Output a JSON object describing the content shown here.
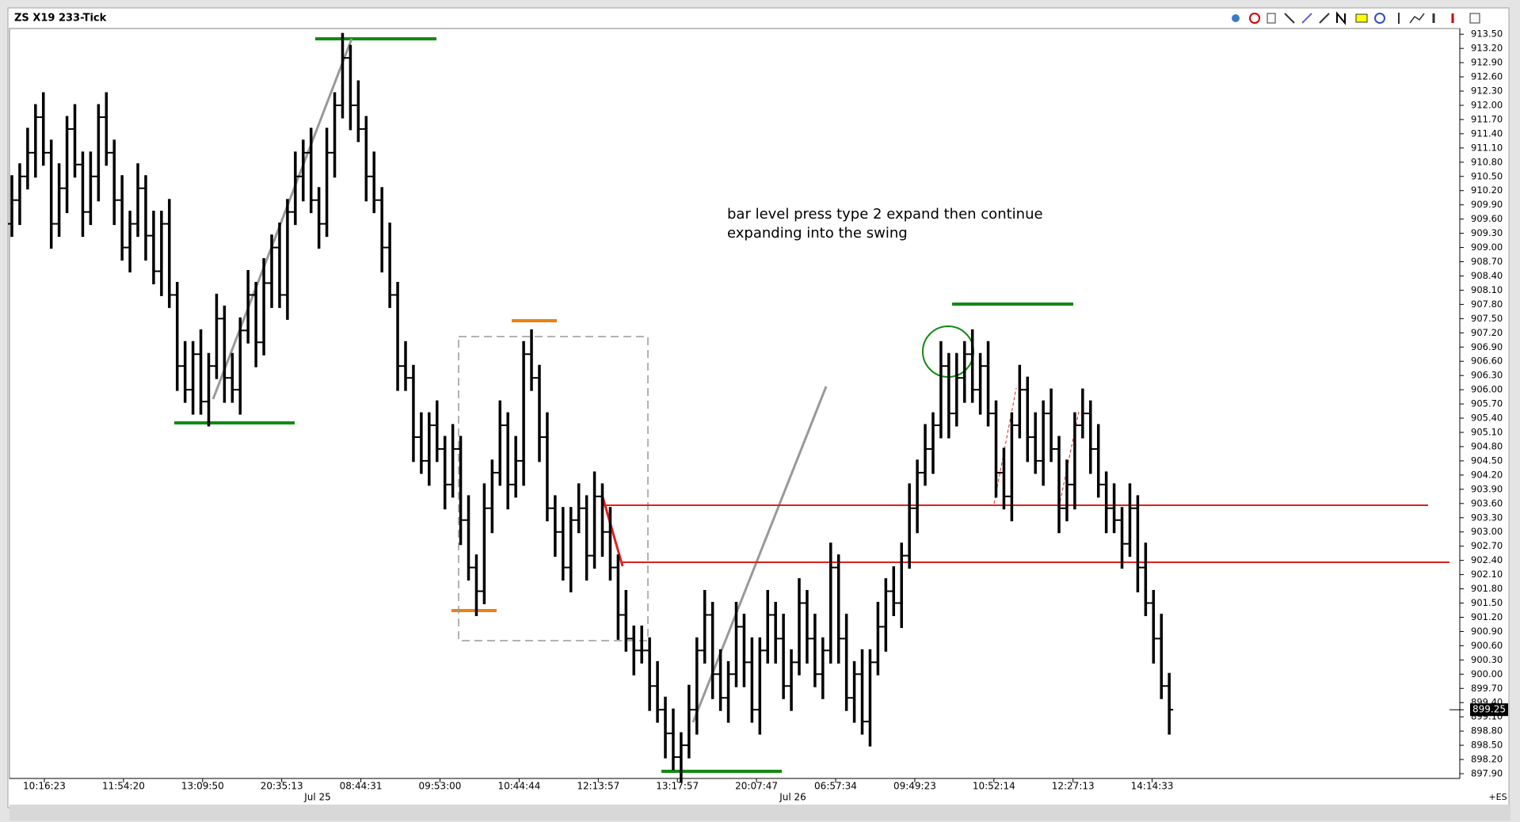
{
  "chart_data": {
    "type": "ohlc",
    "title": "ZS X19 233-Tick",
    "annotation": [
      "bar level press type 2 expand then continue",
      "expanding into the swing"
    ],
    "ohlc": [
      [
        909.5,
        910.5,
        909.25,
        910.0
      ],
      [
        910.0,
        910.75,
        909.5,
        910.5
      ],
      [
        910.5,
        911.5,
        910.25,
        911.0
      ],
      [
        911.0,
        912.0,
        910.5,
        911.75
      ],
      [
        911.75,
        912.25,
        910.75,
        911.0
      ],
      [
        911.0,
        911.25,
        909.0,
        909.5
      ],
      [
        909.5,
        910.75,
        909.25,
        910.25
      ],
      [
        910.25,
        911.75,
        909.75,
        911.5
      ],
      [
        911.5,
        912.0,
        910.5,
        910.75
      ],
      [
        910.75,
        911.0,
        909.25,
        909.75
      ],
      [
        909.75,
        911.0,
        909.5,
        910.5
      ],
      [
        910.5,
        912.0,
        910.0,
        911.75
      ],
      [
        911.75,
        912.25,
        910.75,
        911.0
      ],
      [
        911.0,
        911.25,
        909.5,
        910.0
      ],
      [
        910.0,
        910.5,
        908.75,
        909.0
      ],
      [
        909.0,
        909.75,
        908.5,
        909.5
      ],
      [
        909.5,
        910.75,
        909.25,
        910.25
      ],
      [
        910.25,
        910.5,
        908.75,
        909.25
      ],
      [
        909.25,
        909.75,
        908.25,
        908.5
      ],
      [
        908.5,
        909.75,
        908.0,
        909.5
      ],
      [
        909.5,
        910.0,
        907.75,
        908.0
      ],
      [
        908.0,
        908.25,
        906.0,
        906.5
      ],
      [
        906.5,
        907.0,
        905.75,
        906.0
      ],
      [
        906.0,
        907.0,
        905.5,
        906.75
      ],
      [
        906.75,
        907.25,
        905.5,
        905.75
      ],
      [
        905.75,
        906.75,
        905.25,
        906.5
      ],
      [
        906.5,
        908.0,
        906.25,
        907.5
      ],
      [
        907.5,
        907.75,
        905.75,
        906.25
      ],
      [
        906.25,
        906.75,
        905.75,
        906.0
      ],
      [
        906.0,
        907.5,
        905.5,
        907.25
      ],
      [
        907.25,
        908.5,
        907.0,
        908.0
      ],
      [
        908.0,
        908.25,
        906.5,
        907.0
      ],
      [
        907.0,
        908.75,
        906.75,
        908.25
      ],
      [
        908.25,
        909.25,
        907.75,
        909.0
      ],
      [
        909.0,
        909.5,
        907.75,
        908.0
      ],
      [
        908.0,
        910.0,
        907.5,
        909.75
      ],
      [
        909.75,
        911.0,
        909.5,
        910.5
      ],
      [
        910.5,
        911.25,
        910.0,
        911.0
      ],
      [
        911.0,
        911.5,
        909.75,
        910.0
      ],
      [
        910.0,
        910.25,
        909.0,
        909.5
      ],
      [
        909.5,
        911.5,
        909.25,
        911.0
      ],
      [
        911.0,
        912.25,
        910.5,
        912.0
      ],
      [
        912.0,
        913.5,
        911.75,
        913.0
      ],
      [
        913.0,
        913.25,
        911.5,
        912.0
      ],
      [
        912.0,
        912.5,
        911.25,
        911.5
      ],
      [
        911.5,
        911.75,
        910.0,
        910.5
      ],
      [
        910.5,
        911.0,
        909.75,
        910.0
      ],
      [
        910.0,
        910.25,
        908.5,
        909.0
      ],
      [
        909.0,
        909.5,
        907.75,
        908.0
      ],
      [
        908.0,
        908.25,
        906.0,
        906.5
      ],
      [
        906.5,
        907.0,
        906.0,
        906.25
      ],
      [
        906.25,
        906.5,
        904.5,
        905.0
      ],
      [
        905.0,
        905.5,
        904.25,
        904.5
      ],
      [
        904.5,
        905.5,
        904.0,
        905.25
      ],
      [
        905.25,
        905.75,
        904.5,
        904.75
      ],
      [
        904.75,
        905.0,
        903.5,
        904.0
      ],
      [
        904.0,
        905.25,
        903.75,
        904.75
      ],
      [
        904.75,
        905.0,
        902.75,
        903.25
      ],
      [
        903.25,
        903.75,
        902.0,
        902.25
      ],
      [
        902.25,
        902.5,
        901.25,
        901.75
      ],
      [
        901.75,
        904.0,
        901.5,
        903.5
      ],
      [
        903.5,
        904.5,
        903.0,
        904.25
      ],
      [
        904.25,
        905.75,
        904.0,
        905.25
      ],
      [
        905.25,
        905.5,
        903.5,
        904.0
      ],
      [
        904.0,
        905.0,
        903.75,
        904.5
      ],
      [
        904.5,
        907.0,
        904.0,
        906.75
      ],
      [
        906.75,
        907.25,
        906.0,
        906.25
      ],
      [
        906.25,
        906.5,
        904.5,
        905.0
      ],
      [
        905.0,
        905.5,
        903.25,
        903.5
      ],
      [
        903.5,
        903.75,
        902.5,
        903.0
      ],
      [
        903.0,
        903.5,
        902.0,
        902.25
      ],
      [
        902.25,
        903.5,
        901.75,
        903.25
      ],
      [
        903.25,
        904.0,
        903.0,
        903.5
      ],
      [
        903.5,
        903.75,
        902.0,
        902.5
      ],
      [
        902.5,
        904.25,
        902.25,
        903.75
      ],
      [
        903.75,
        904.0,
        902.5,
        903.0
      ],
      [
        903.0,
        903.5,
        902.0,
        902.25
      ],
      [
        902.25,
        902.5,
        900.75,
        901.25
      ],
      [
        901.25,
        901.75,
        900.5,
        900.75
      ],
      [
        900.75,
        901.0,
        900.0,
        900.5
      ],
      [
        900.5,
        901.0,
        900.25,
        900.5
      ],
      [
        900.5,
        900.75,
        899.25,
        899.75
      ],
      [
        899.75,
        900.25,
        899.0,
        899.25
      ],
      [
        899.25,
        899.5,
        898.25,
        898.75
      ],
      [
        898.75,
        899.25,
        898.0,
        898.25
      ],
      [
        898.25,
        898.75,
        897.75,
        898.5
      ],
      [
        898.5,
        899.75,
        898.25,
        899.25
      ],
      [
        899.25,
        900.75,
        898.75,
        900.5
      ],
      [
        900.5,
        901.75,
        900.25,
        901.25
      ],
      [
        901.25,
        901.5,
        899.5,
        900.0
      ],
      [
        900.0,
        900.5,
        899.25,
        899.5
      ],
      [
        899.5,
        900.25,
        899.0,
        900.0
      ],
      [
        900.0,
        901.5,
        899.75,
        901.0
      ],
      [
        901.0,
        901.25,
        899.75,
        900.25
      ],
      [
        900.25,
        900.75,
        899.0,
        899.25
      ],
      [
        899.25,
        900.75,
        898.75,
        900.5
      ],
      [
        900.5,
        901.75,
        900.25,
        901.25
      ],
      [
        901.25,
        901.5,
        900.25,
        900.75
      ],
      [
        900.75,
        901.25,
        899.5,
        899.75
      ],
      [
        899.75,
        900.5,
        899.25,
        900.25
      ],
      [
        900.25,
        902.0,
        900.0,
        901.5
      ],
      [
        901.5,
        901.75,
        900.25,
        900.75
      ],
      [
        900.75,
        901.25,
        899.75,
        900.0
      ],
      [
        900.0,
        900.75,
        899.5,
        900.5
      ],
      [
        900.5,
        902.75,
        900.25,
        902.25
      ],
      [
        902.25,
        902.5,
        900.25,
        900.75
      ],
      [
        900.75,
        901.25,
        899.25,
        899.5
      ],
      [
        899.5,
        900.25,
        899.0,
        900.0
      ],
      [
        900.0,
        900.5,
        898.75,
        899.0
      ],
      [
        899.0,
        900.5,
        898.5,
        900.25
      ],
      [
        900.25,
        901.5,
        900.0,
        901.0
      ],
      [
        901.0,
        902.0,
        900.5,
        901.75
      ],
      [
        901.75,
        902.25,
        901.25,
        901.5
      ],
      [
        901.5,
        902.75,
        901.0,
        902.5
      ],
      [
        902.5,
        904.0,
        902.25,
        903.5
      ],
      [
        903.5,
        904.5,
        903.0,
        904.25
      ],
      [
        904.25,
        905.25,
        904.0,
        904.75
      ],
      [
        904.75,
        905.5,
        904.25,
        905.25
      ],
      [
        905.25,
        907.0,
        905.0,
        906.5
      ],
      [
        906.5,
        906.75,
        905.0,
        905.5
      ],
      [
        905.5,
        906.75,
        905.25,
        906.25
      ],
      [
        906.25,
        907.0,
        905.75,
        906.75
      ],
      [
        906.75,
        907.25,
        905.75,
        906.0
      ],
      [
        906.0,
        906.75,
        905.5,
        906.5
      ],
      [
        906.5,
        907.0,
        905.25,
        905.5
      ],
      [
        905.5,
        905.75,
        903.75,
        904.25
      ],
      [
        904.25,
        904.75,
        903.5,
        903.75
      ],
      [
        903.75,
        905.5,
        903.25,
        905.25
      ],
      [
        905.25,
        906.5,
        905.0,
        906.0
      ],
      [
        906.0,
        906.25,
        904.5,
        905.0
      ],
      [
        905.0,
        905.5,
        904.25,
        904.5
      ],
      [
        904.5,
        905.75,
        904.0,
        905.5
      ],
      [
        905.5,
        906.0,
        904.5,
        904.75
      ],
      [
        904.75,
        905.0,
        903.0,
        903.5
      ],
      [
        903.5,
        904.5,
        903.25,
        904.0
      ],
      [
        904.0,
        905.5,
        903.5,
        905.25
      ],
      [
        905.25,
        906.0,
        905.0,
        905.5
      ],
      [
        905.5,
        905.75,
        904.25,
        904.75
      ],
      [
        904.75,
        905.25,
        903.75,
        904.0
      ],
      [
        904.0,
        904.25,
        903.0,
        903.5
      ],
      [
        903.5,
        904.0,
        903.0,
        903.25
      ],
      [
        903.25,
        903.5,
        902.25,
        902.75
      ],
      [
        902.75,
        904.0,
        902.5,
        903.5
      ],
      [
        903.5,
        903.75,
        901.75,
        902.25
      ],
      [
        902.25,
        902.75,
        901.25,
        901.5
      ],
      [
        901.5,
        901.75,
        900.25,
        900.75
      ],
      [
        900.75,
        901.25,
        899.5,
        899.75
      ],
      [
        899.75,
        900.0,
        898.75,
        899.25
      ]
    ],
    "x_labels": [
      "10:16:23",
      "11:54:20",
      "13:09:50",
      "20:35:13",
      "08:44:31",
      "09:53:00",
      "10:44:44",
      "12:13:57",
      "13:17:57",
      "20:07:47",
      "06:57:34",
      "09:49:23",
      "10:52:14",
      "12:27:13",
      "14:14:33"
    ],
    "date_labels": [
      "Jul 25",
      "Jul 26"
    ],
    "last_price": 899.25,
    "instrument_tag": "+ES",
    "color": "#000000",
    "ylim": [
      897.8,
      913.62
    ],
    "yticks": [
      {
        "value": 913.5,
        "label": "913.50"
      },
      {
        "value": 913.2,
        "label": "913.20"
      },
      {
        "value": 912.9,
        "label": "912.90"
      },
      {
        "value": 912.6,
        "label": "912.60"
      },
      {
        "value": 912.3,
        "label": "912.30"
      },
      {
        "value": 912,
        "label": "912.00"
      },
      {
        "value": 911.7,
        "label": "911.70"
      },
      {
        "value": 911.4,
        "label": "911.40"
      },
      {
        "value": 911.1,
        "label": "911.10"
      },
      {
        "value": 910.8,
        "label": "910.80"
      },
      {
        "value": 910.5,
        "label": "910.50"
      },
      {
        "value": 910.2,
        "label": "910.20"
      },
      {
        "value": 909.9,
        "label": "909.90"
      },
      {
        "value": 909.6,
        "label": "909.60"
      },
      {
        "value": 909.3,
        "label": "909.30"
      },
      {
        "value": 909,
        "label": "909.00"
      },
      {
        "value": 908.7,
        "label": "908.70"
      },
      {
        "value": 908.4,
        "label": "908.40"
      },
      {
        "value": 908.1,
        "label": "908.10"
      },
      {
        "value": 907.8,
        "label": "907.80"
      },
      {
        "value": 907.5,
        "label": "907.50"
      },
      {
        "value": 907.2,
        "label": "907.20"
      },
      {
        "value": 906.9,
        "label": "906.90"
      },
      {
        "value": 906.6,
        "label": "906.60"
      },
      {
        "value": 906.3,
        "label": "906.30"
      },
      {
        "value": 906,
        "label": "906.00"
      },
      {
        "value": 905.7,
        "label": "905.70"
      },
      {
        "value": 905.4,
        "label": "905.40"
      },
      {
        "value": 905.1,
        "label": "905.10"
      },
      {
        "value": 904.8,
        "label": "904.80"
      },
      {
        "value": 904.5,
        "label": "904.50"
      },
      {
        "value": 904.2,
        "label": "904.20"
      },
      {
        "value": 903.9,
        "label": "903.90"
      },
      {
        "value": 903.6,
        "label": "903.60"
      },
      {
        "value": 903.3,
        "label": "903.30"
      },
      {
        "value": 903,
        "label": "903.00"
      },
      {
        "value": 902.7,
        "label": "902.70"
      },
      {
        "value": 902.4,
        "label": "902.40"
      },
      {
        "value": 902.1,
        "label": "902.10"
      },
      {
        "value": 901.8,
        "label": "901.80"
      },
      {
        "value": 901.5,
        "label": "901.50"
      },
      {
        "value": 901.2,
        "label": "901.20"
      },
      {
        "value": 900.9,
        "label": "900.90"
      },
      {
        "value": 900.6,
        "label": "900.60"
      },
      {
        "value": 900.3,
        "label": "900.30"
      },
      {
        "value": 900,
        "label": "900.00"
      },
      {
        "value": 899.7,
        "label": "899.70"
      },
      {
        "value": 899.4,
        "label": "899.40"
      },
      {
        "value": 899.1,
        "label": "899.10"
      },
      {
        "value": 898.8,
        "label": "898.80"
      },
      {
        "value": 898.5,
        "label": "898.50"
      },
      {
        "value": 898.2,
        "label": "898.20"
      },
      {
        "value": 897.9,
        "label": "897.90"
      }
    ]
  }
}
